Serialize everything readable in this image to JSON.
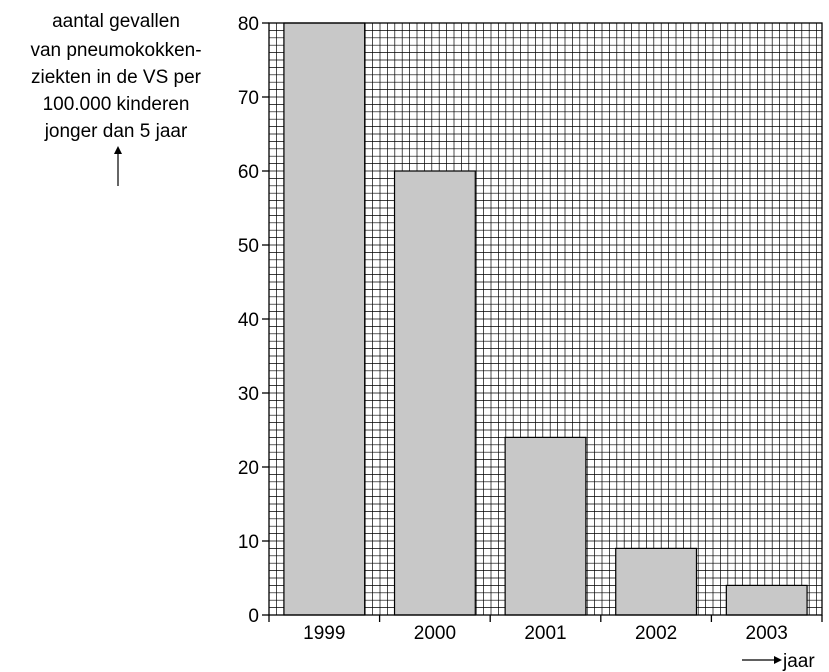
{
  "chart_data": {
    "type": "bar",
    "ylabel": [
      "aantal gevallen",
      "van pneumokokken-",
      "ziekten in de VS per",
      "100.000 kinderen",
      "jonger dan 5 jaar"
    ],
    "xlabel": "jaar",
    "categories": [
      "1999",
      "2000",
      "2001",
      "2002",
      "2003"
    ],
    "values": [
      80,
      60,
      24,
      9,
      4
    ],
    "ylim": [
      0,
      80
    ],
    "yticks": [
      0,
      10,
      20,
      30,
      40,
      50,
      60,
      70,
      80
    ],
    "grid": true,
    "colors": {
      "bar_fill": "#c8c8c8",
      "grid": "#000000",
      "background": "#ffffff"
    }
  }
}
